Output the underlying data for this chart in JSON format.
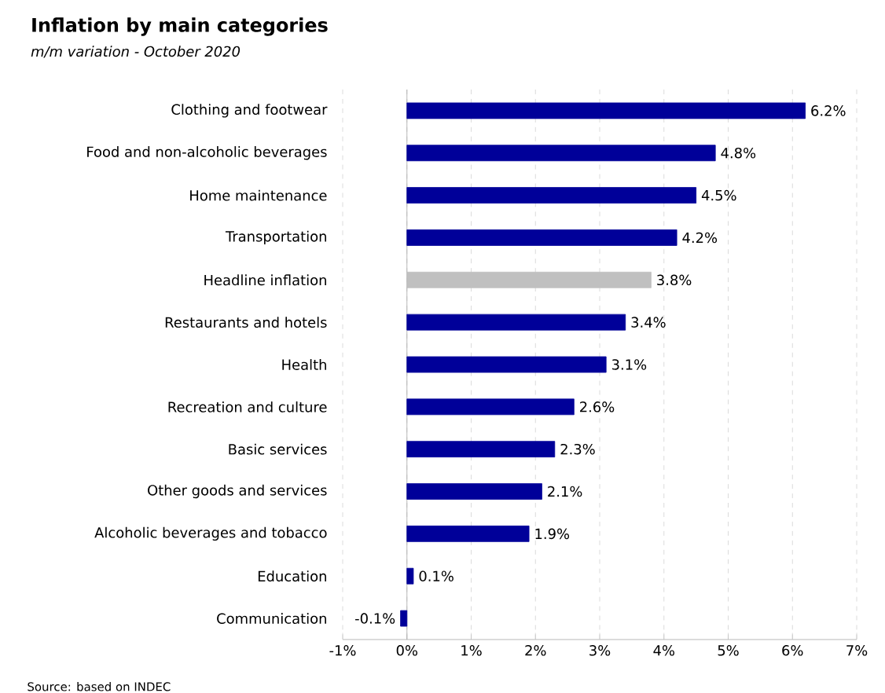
{
  "chart_data": {
    "type": "bar",
    "orientation": "horizontal",
    "title": "Inflation by main categories",
    "subtitle": "m/m variation - October 2020",
    "categories": [
      "Clothing and footwear",
      "Food and non-alcoholic beverages",
      "Home maintenance",
      "Transportation",
      "Headline inflation",
      "Restaurants and hotels",
      "Health",
      "Recreation and culture",
      "Basic services",
      "Other goods and services",
      "Alcoholic beverages and tobacco",
      "Education",
      "Communication"
    ],
    "values": [
      6.2,
      4.8,
      4.5,
      4.2,
      3.8,
      3.4,
      3.1,
      2.6,
      2.3,
      2.1,
      1.9,
      0.1,
      -0.1
    ],
    "value_labels": [
      "6.2%",
      "4.8%",
      "4.5%",
      "4.2%",
      "3.8%",
      "3.4%",
      "3.1%",
      "2.6%",
      "2.3%",
      "2.1%",
      "1.9%",
      "0.1%",
      "-0.1%"
    ],
    "colors": [
      "#000099",
      "#000099",
      "#000099",
      "#000099",
      "#c0c0c0",
      "#000099",
      "#000099",
      "#000099",
      "#000099",
      "#000099",
      "#000099",
      "#000099",
      "#000099"
    ],
    "xlim": [
      -1,
      7
    ],
    "xticks": [
      {
        "value": -1,
        "label": "-1%"
      },
      {
        "value": 0,
        "label": "0%"
      },
      {
        "value": 1,
        "label": "1%"
      },
      {
        "value": 2,
        "label": "2%"
      },
      {
        "value": 3,
        "label": "3%"
      },
      {
        "value": 4,
        "label": "4%"
      },
      {
        "value": 5,
        "label": "5%"
      },
      {
        "value": 6,
        "label": "6%"
      },
      {
        "value": 7,
        "label": "7%"
      }
    ],
    "grid": "x",
    "annotations": [
      "Source: based on INDEC"
    ]
  }
}
